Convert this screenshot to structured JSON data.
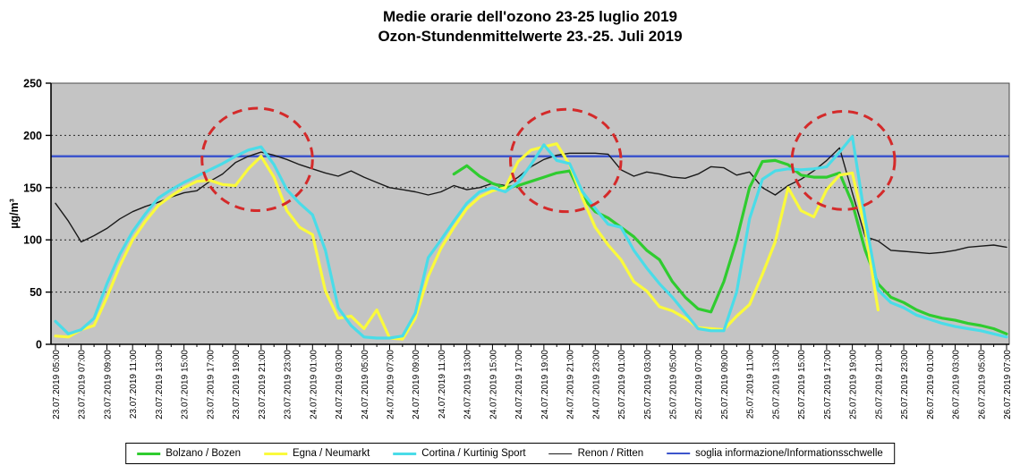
{
  "title": {
    "line1": "Medie orarie dell'ozono 23-25 luglio 2019",
    "line2": "Ozon-Stundenmittelwerte 23.-25. Juli 2019"
  },
  "colors": {
    "plot_bg": "#c4c4c4",
    "grid": "#2a2a2a",
    "border": "#4a4a4a",
    "annotation_red": "#d42a2a"
  },
  "legend": [
    {
      "label": "Bolzano / Bozen",
      "color": "#2fcc2f",
      "thickness": 3
    },
    {
      "label": "Egna / Neumarkt",
      "color": "#fafa3c",
      "thickness": 3
    },
    {
      "label": "Cortina  / Kurtinig Sport",
      "color": "#4adce8",
      "thickness": 3
    },
    {
      "label": "Renon / Ritten",
      "color": "#1a1a1a",
      "thickness": 1.4
    },
    {
      "label": "soglia informazione/Informationsschwelle",
      "color": "#3d55cc",
      "thickness": 2.4
    }
  ],
  "chart_data": {
    "type": "line",
    "title": "Medie orarie dell'ozono 23-25 luglio 2019 / Ozon-Stundenmittelwerte 23.-25. Juli 2019",
    "ylabel": "µg/m³",
    "ylim": [
      0,
      250
    ],
    "y_ticks": [
      0,
      50,
      100,
      150,
      200,
      250
    ],
    "grid_values": [
      50,
      100,
      150,
      200
    ],
    "grid": true,
    "legend_position": "bottom",
    "x_tick_labels_every_2h": [
      "23.07.2019 05:00",
      "23.07.2019 07:00",
      "23.07.2019 09:00",
      "23.07.2019 11:00",
      "23.07.2019 13:00",
      "23.07.2019 15:00",
      "23.07.2019 17:00",
      "23.07.2019 19:00",
      "23.07.2019 21:00",
      "23.07.2019 23:00",
      "24.07.2019 01:00",
      "24.07.2019 03:00",
      "24.07.2019 05:00",
      "24.07.2019 07:00",
      "24.07.2019 09:00",
      "24.07.2019 11:00",
      "24.07.2019 13:00",
      "24.07.2019 15:00",
      "24.07.2019 17:00",
      "24.07.2019 19:00",
      "24.07.2019 21:00",
      "24.07.2019 23:00",
      "25.07.2019 01:00",
      "25.07.2019 03:00",
      "25.07.2019 05:00",
      "25.07.2019 07:00",
      "25.07.2019 09:00",
      "25.07.2019 11:00",
      "25.07.2019 13:00",
      "25.07.2019 15:00",
      "25.07.2019 17:00",
      "25.07.2019 19:00",
      "25.07.2019 21:00",
      "25.07.2019 23:00",
      "26.07.2019 01:00",
      "26.07.2019 03:00",
      "26.07.2019 05:00",
      "26.07.2019 07:00"
    ],
    "points_per_hour": 1,
    "series": [
      {
        "name": "Bolzano / Bozen",
        "color": "#2fcc2f",
        "width": 3.2,
        "values": [
          null,
          null,
          null,
          null,
          null,
          null,
          null,
          null,
          null,
          null,
          null,
          null,
          null,
          null,
          null,
          null,
          null,
          null,
          null,
          null,
          null,
          null,
          null,
          null,
          null,
          null,
          null,
          null,
          null,
          null,
          null,
          163,
          171,
          161,
          154,
          150,
          152,
          156,
          160,
          164,
          166,
          141,
          127,
          121,
          112,
          103,
          90,
          81,
          60,
          45,
          34,
          31,
          60,
          100,
          150,
          175,
          176,
          172,
          162,
          160,
          160,
          164,
          135,
          90,
          58,
          45,
          40,
          33,
          28,
          25,
          23,
          20,
          18,
          15,
          10
        ]
      },
      {
        "name": "Egna / Neumarkt",
        "color": "#fafa3c",
        "width": 3.2,
        "values": [
          8,
          7,
          14,
          18,
          45,
          75,
          100,
          118,
          133,
          142,
          150,
          156,
          157,
          153,
          152,
          168,
          180,
          160,
          128,
          112,
          105,
          51,
          25,
          27,
          15,
          33,
          6,
          5,
          25,
          65,
          92,
          112,
          130,
          141,
          147,
          150,
          175,
          186,
          189,
          192,
          172,
          140,
          112,
          95,
          81,
          60,
          51,
          36,
          32,
          25,
          16,
          15,
          14,
          27,
          38,
          67,
          98,
          150,
          128,
          122,
          148,
          162,
          164,
          110,
          33,
          null,
          null,
          null,
          null,
          null,
          null,
          null,
          null,
          null,
          null
        ]
      },
      {
        "name": "Cortina  / Kurtinig Sport",
        "color": "#4adce8",
        "width": 3.2,
        "values": [
          22,
          10,
          14,
          25,
          58,
          86,
          108,
          125,
          140,
          148,
          155,
          161,
          167,
          173,
          180,
          186,
          189,
          172,
          148,
          135,
          124,
          90,
          35,
          18,
          7,
          6,
          6,
          8,
          30,
          83,
          100,
          118,
          135,
          146,
          150,
          146,
          155,
          172,
          191,
          176,
          173,
          146,
          130,
          115,
          112,
          90,
          73,
          58,
          45,
          30,
          15,
          13,
          13,
          50,
          120,
          158,
          166,
          168,
          167,
          168,
          170,
          184,
          199,
          120,
          52,
          40,
          35,
          28,
          24,
          20,
          17,
          15,
          13,
          10,
          7
        ]
      },
      {
        "name": "Renon / Ritten",
        "color": "#1a1a1a",
        "width": 1.4,
        "values": [
          135,
          118,
          98,
          104,
          111,
          120,
          127,
          132,
          136,
          141,
          145,
          147,
          156,
          163,
          174,
          180,
          184,
          181,
          177,
          172,
          168,
          164,
          161,
          166,
          160,
          155,
          150,
          148,
          146,
          143,
          146,
          152,
          148,
          150,
          154,
          152,
          160,
          170,
          177,
          181,
          183,
          183,
          183,
          182,
          167,
          161,
          165,
          163,
          160,
          159,
          163,
          170,
          169,
          162,
          165,
          150,
          143,
          152,
          158,
          166,
          176,
          188,
          145,
          103,
          99,
          90,
          89,
          88,
          87,
          88,
          90,
          93,
          94,
          95,
          93
        ]
      }
    ],
    "threshold_line": {
      "name": "soglia informazione/Informationsschwelle",
      "value": 180,
      "color": "#3d55cc",
      "width": 2.6
    },
    "annotations": {
      "ellipses": [
        {
          "x_index": 15.7,
          "y_value": 177,
          "rx_hours": 4.3,
          "ry_value": 49
        },
        {
          "x_index": 39.7,
          "y_value": 176,
          "rx_hours": 4.3,
          "ry_value": 49
        },
        {
          "x_index": 61.3,
          "y_value": 176,
          "rx_hours": 4.0,
          "ry_value": 47
        }
      ]
    }
  }
}
